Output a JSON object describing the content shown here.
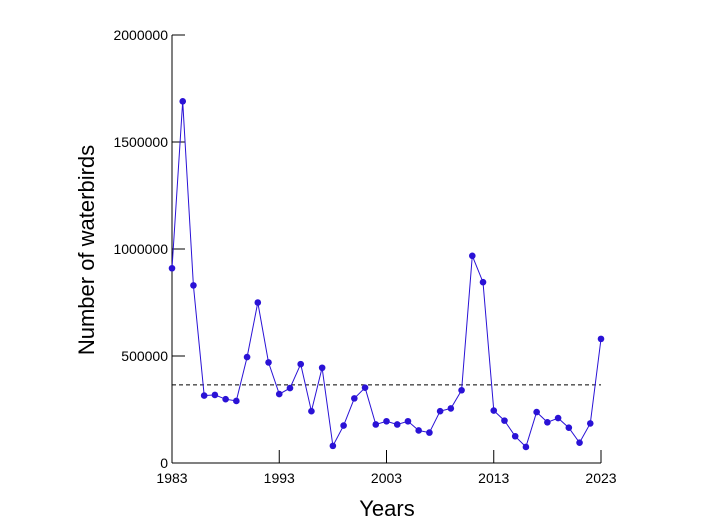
{
  "chart_data": {
    "type": "line",
    "xlabel": "Years",
    "ylabel": "Number of waterbirds",
    "xlim": [
      1983,
      2023
    ],
    "ylim": [
      0,
      2000000
    ],
    "x_ticks": [
      "1983",
      "1993",
      "2003",
      "2013",
      "2023"
    ],
    "y_ticks": [
      "0",
      "500000",
      "1000000",
      "1500000",
      "2000000"
    ],
    "grid": false,
    "series_color": "#2a12d6",
    "reference_line": {
      "style": "dashed",
      "value": 365000,
      "color": "#000000"
    },
    "series": [
      {
        "x": [
          1983,
          1984,
          1985,
          1986,
          1987,
          1988,
          1989,
          1990,
          1991,
          1992,
          1993,
          1994,
          1995,
          1996,
          1997,
          1998,
          1999,
          2000,
          2001,
          2002,
          2003,
          2004,
          2005,
          2006,
          2007,
          2008,
          2009,
          2010,
          2011,
          2012,
          2013,
          2014,
          2015,
          2016,
          2017,
          2018,
          2019,
          2020,
          2021,
          2022,
          2023
        ],
        "y": [
          910000,
          1690000,
          830000,
          315000,
          318000,
          298000,
          290000,
          495000,
          750000,
          470000,
          322000,
          350000,
          462000,
          242000,
          445000,
          80000,
          175000,
          302000,
          352000,
          180000,
          195000,
          180000,
          195000,
          152000,
          142000,
          242000,
          255000,
          340000,
          968000,
          845000,
          245000,
          198000,
          125000,
          75000,
          238000,
          190000,
          210000,
          165000,
          95000,
          185000,
          580000
        ]
      }
    ]
  }
}
